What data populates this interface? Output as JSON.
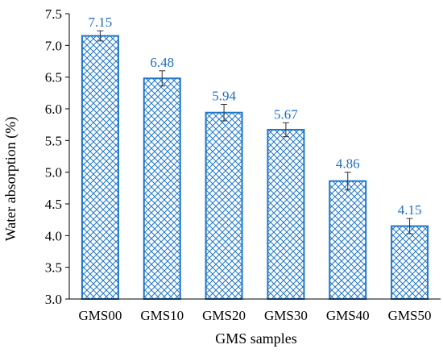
{
  "chart_data": {
    "type": "bar",
    "title": "",
    "xlabel": "GMS samples",
    "ylabel": "Water absorption (%)",
    "categories": [
      "GMS00",
      "GMS10",
      "GMS20",
      "GMS30",
      "GMS40",
      "GMS50"
    ],
    "values": [
      7.15,
      6.48,
      5.94,
      5.67,
      4.86,
      4.15
    ],
    "value_labels": [
      "7.15",
      "6.48",
      "5.94",
      "5.67",
      "4.86",
      "4.15"
    ],
    "error": [
      0.08,
      0.12,
      0.13,
      0.11,
      0.14,
      0.12
    ],
    "ylim": [
      3.0,
      7.5
    ],
    "yticks": [
      "3.0",
      "3.5",
      "4.0",
      "4.5",
      "5.0",
      "5.5",
      "6.0",
      "6.5",
      "7.0",
      "7.5"
    ],
    "grid": false,
    "bar_pattern": "diamond-hatch",
    "colors": {
      "bar_stroke": "#1f77c9",
      "label": "#1f6fc0",
      "axis": "#000000"
    }
  }
}
